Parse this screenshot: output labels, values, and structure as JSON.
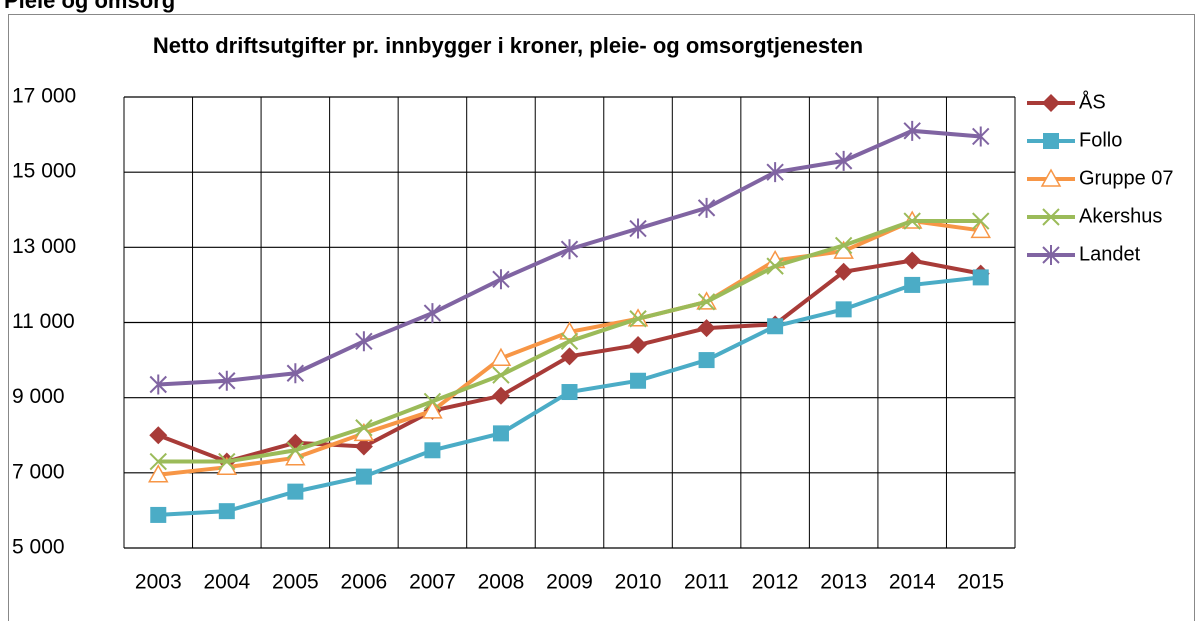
{
  "header": "Pleie og omsorg",
  "chart_data": {
    "type": "line",
    "title": "Netto driftsutgifter pr. innbygger i kroner, pleie- og omsorgtjenesten",
    "categories": [
      "2003",
      "2004",
      "2005",
      "2006",
      "2007",
      "2008",
      "2009",
      "2010",
      "2011",
      "2012",
      "2013",
      "2014",
      "2015"
    ],
    "series": [
      {
        "name": "ÅS",
        "color": "#a83b38",
        "marker": "diamond",
        "values": [
          8000,
          7300,
          7800,
          7700,
          8650,
          9050,
          10100,
          10400,
          10850,
          10950,
          12350,
          12650,
          12300
        ]
      },
      {
        "name": "Follo",
        "color": "#4bacc6",
        "marker": "square",
        "values": [
          5880,
          5980,
          6500,
          6900,
          7600,
          8050,
          9150,
          9450,
          10000,
          10900,
          11350,
          12000,
          12200
        ]
      },
      {
        "name": "Gruppe 07",
        "color": "#f79646",
        "marker": "triangle",
        "values": [
          6950,
          7150,
          7400,
          8050,
          8650,
          10050,
          10750,
          11100,
          11550,
          12650,
          12900,
          13700,
          13450
        ]
      },
      {
        "name": "Akershus",
        "color": "#9bbb59",
        "marker": "x",
        "values": [
          7300,
          7300,
          7600,
          8200,
          8900,
          9600,
          10500,
          11100,
          11550,
          12500,
          13050,
          13700,
          13700
        ]
      },
      {
        "name": "Landet",
        "color": "#8064a2",
        "marker": "star",
        "values": [
          9350,
          9450,
          9650,
          10500,
          11250,
          12150,
          12950,
          13500,
          14050,
          15000,
          15300,
          16100,
          15950
        ]
      }
    ],
    "ylim": [
      5000,
      17000
    ],
    "yticks": [
      {
        "value": 5000,
        "label": "5 000"
      },
      {
        "value": 7000,
        "label": "7 000"
      },
      {
        "value": 9000,
        "label": "9 000"
      },
      {
        "value": 11000,
        "label": "11 000"
      },
      {
        "value": 13000,
        "label": "13 000"
      },
      {
        "value": 15000,
        "label": "15 000"
      },
      {
        "value": 17000,
        "label": "17 000"
      }
    ],
    "grid": true,
    "legend": "right"
  }
}
